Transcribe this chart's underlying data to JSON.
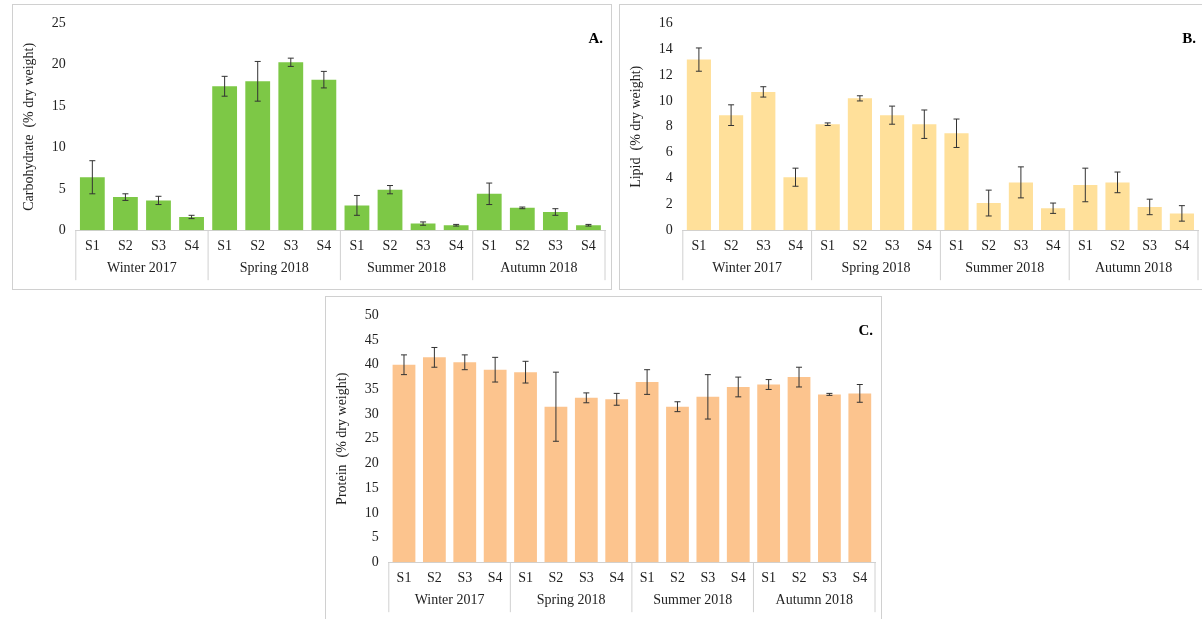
{
  "chart_data": [
    {
      "type": "bar",
      "title": "A.",
      "ylabel": "Carbohydrate  (% dry weight)",
      "categories": [
        "S1",
        "S2",
        "S3",
        "S4",
        "S1",
        "S2",
        "S3",
        "S4",
        "S1",
        "S2",
        "S3",
        "S4",
        "S1",
        "S2",
        "S3",
        "S4"
      ],
      "values": [
        6.4,
        4.0,
        3.6,
        1.6,
        17.4,
        18.0,
        20.3,
        18.2,
        3.0,
        4.9,
        0.8,
        0.6,
        4.4,
        2.7,
        2.2,
        0.6
      ],
      "errors": [
        2.0,
        0.4,
        0.5,
        0.2,
        1.2,
        2.4,
        0.5,
        1.0,
        1.2,
        0.5,
        0.2,
        0.1,
        1.3,
        0.1,
        0.4,
        0.1
      ],
      "color": "#7dc846",
      "ylim": [
        0,
        25
      ],
      "yticks": [
        0,
        5,
        10,
        15,
        20,
        25
      ],
      "grid": false,
      "legend": false,
      "annotations": [
        "Winter 2017",
        "Spring 2018",
        "Summer 2018",
        "Autumn 2018"
      ]
    },
    {
      "type": "bar",
      "title": "B.",
      "ylabel": "Lipid  (% dry weight)",
      "categories": [
        "S1",
        "S2",
        "S3",
        "S4",
        "S1",
        "S2",
        "S3",
        "S4",
        "S1",
        "S2",
        "S3",
        "S4",
        "S1",
        "S2",
        "S3",
        "S4"
      ],
      "values": [
        13.2,
        8.9,
        10.7,
        4.1,
        8.2,
        10.2,
        8.9,
        8.2,
        7.5,
        2.1,
        3.7,
        1.7,
        3.5,
        3.7,
        1.8,
        1.3
      ],
      "errors": [
        0.9,
        0.8,
        0.4,
        0.7,
        0.1,
        0.2,
        0.7,
        1.1,
        1.1,
        1.0,
        1.2,
        0.4,
        1.3,
        0.8,
        0.6,
        0.6
      ],
      "color": "#ffe09a",
      "ylim": [
        0,
        16
      ],
      "yticks": [
        0,
        2,
        4,
        6,
        8,
        10,
        12,
        14,
        16
      ],
      "grid": false,
      "legend": false,
      "annotations": [
        "Winter 2017",
        "Spring 2018",
        "Summer 2018",
        "Autumn 2018"
      ]
    },
    {
      "type": "bar",
      "title": "C.",
      "ylabel": "Protein  (% dry weight)",
      "categories": [
        "S1",
        "S2",
        "S3",
        "S4",
        "S1",
        "S2",
        "S3",
        "S4",
        "S1",
        "S2",
        "S3",
        "S4",
        "S1",
        "S2",
        "S3",
        "S4"
      ],
      "values": [
        40.0,
        41.5,
        40.5,
        39.0,
        38.5,
        31.5,
        33.3,
        33.0,
        36.5,
        31.5,
        33.5,
        35.5,
        36.0,
        37.5,
        34.0,
        34.2
      ],
      "errors": [
        2.0,
        2.0,
        1.5,
        2.5,
        2.2,
        7.0,
        1.0,
        1.2,
        2.5,
        1.0,
        4.5,
        2.0,
        1.0,
        2.0,
        0.2,
        1.8
      ],
      "color": "#fcc48e",
      "ylim": [
        0,
        50
      ],
      "yticks": [
        0,
        5,
        10,
        15,
        20,
        25,
        30,
        35,
        40,
        45,
        50
      ],
      "grid": false,
      "legend": false,
      "annotations": [
        "Winter 2017",
        "Spring 2018",
        "Summer 2018",
        "Autumn 2018"
      ]
    }
  ]
}
